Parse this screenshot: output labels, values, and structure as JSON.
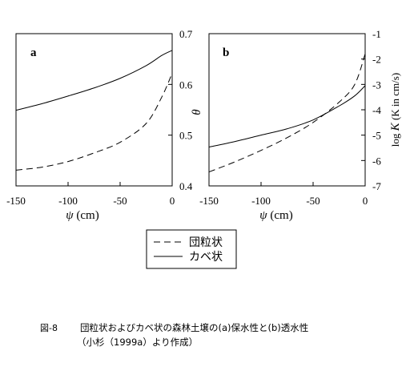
{
  "chart_data": [
    {
      "panel_label": "a",
      "type": "line",
      "xlabel_symbol": "ψ",
      "xlabel_unit": " (cm)",
      "xlim": [
        -150,
        0
      ],
      "xticks": [
        "-150",
        "-100",
        "-50",
        "0"
      ],
      "ylabel_symbol": "θ",
      "ylim": [
        0.4,
        0.7
      ],
      "yticks": [
        "0.4",
        "0.5",
        "0.6",
        "0.7"
      ],
      "y_axis_side": "right",
      "series": [
        {
          "name": "団粒状",
          "style": "dashed",
          "x": [
            -150,
            -125,
            -100,
            -75,
            -50,
            -25,
            -10,
            0
          ],
          "y": [
            0.431,
            0.437,
            0.448,
            0.465,
            0.486,
            0.523,
            0.575,
            0.622
          ]
        },
        {
          "name": "カベ状",
          "style": "solid",
          "x": [
            -150,
            -125,
            -100,
            -75,
            -50,
            -25,
            -10,
            0
          ],
          "y": [
            0.549,
            0.562,
            0.577,
            0.593,
            0.612,
            0.637,
            0.657,
            0.667
          ]
        }
      ]
    },
    {
      "panel_label": "b",
      "type": "line",
      "xlabel_symbol": "ψ",
      "xlabel_unit": " (cm)",
      "xlim": [
        -150,
        0
      ],
      "xticks": [
        "-150",
        "-100",
        "-50",
        "0"
      ],
      "ylabel_prefix": "log ",
      "ylabel_symbol": "K",
      "ylabel_suffix": " (K in cm/s)",
      "ylim": [
        -7,
        -1
      ],
      "yticks": [
        "-7",
        "-6",
        "-5",
        "-4",
        "-3",
        "-2",
        "-1"
      ],
      "y_axis_side": "right",
      "series": [
        {
          "name": "団粒状",
          "style": "dashed",
          "x": [
            -150,
            -125,
            -100,
            -75,
            -50,
            -25,
            -10,
            0
          ],
          "y": [
            -6.45,
            -6.05,
            -5.6,
            -5.1,
            -4.5,
            -3.7,
            -3.0,
            -1.8
          ]
        },
        {
          "name": "カベ状",
          "style": "solid",
          "x": [
            -150,
            -125,
            -100,
            -75,
            -50,
            -25,
            -10,
            0
          ],
          "y": [
            -5.47,
            -5.25,
            -5.0,
            -4.75,
            -4.4,
            -3.85,
            -3.45,
            -3.05
          ]
        }
      ]
    }
  ],
  "legend": {
    "entries": [
      {
        "style": "dashed",
        "label": "団粒状"
      },
      {
        "style": "solid",
        "label": "カベ状"
      }
    ]
  },
  "caption": {
    "number": "図-8",
    "line1": "団粒状およびカベ状の森林土壌の(a)保水性と(b)透水性",
    "line2": "（小杉（1999a）より作成）"
  }
}
